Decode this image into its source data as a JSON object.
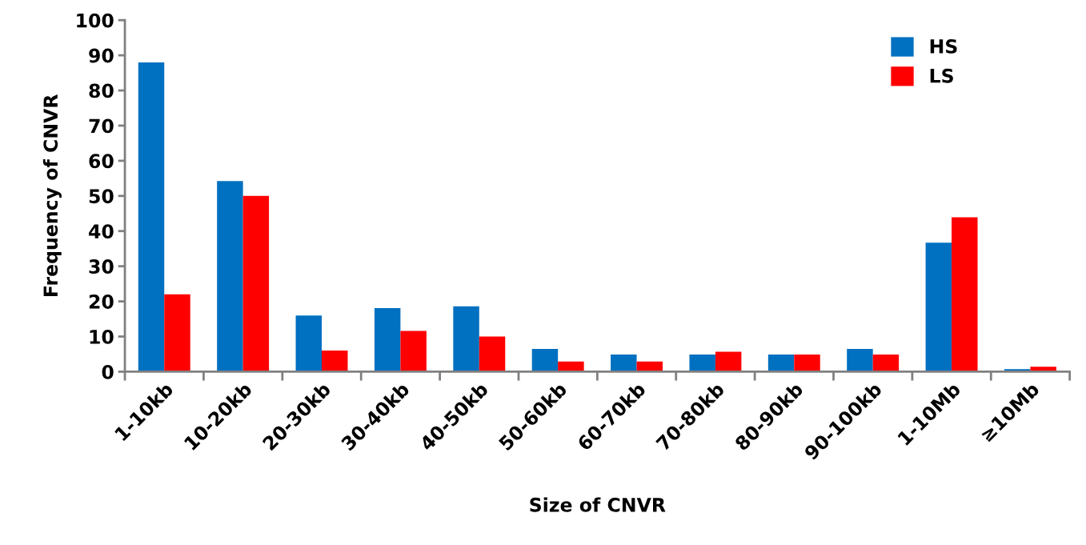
{
  "chart_data": {
    "type": "bar",
    "xlabel": "Size of CNVR",
    "ylabel": "Frequency of CNVR",
    "categories": [
      "1-10kb",
      "10-20kb",
      "20-30kb",
      "30-40kb",
      "40-50kb",
      "50-60kb",
      "60-70kb",
      "70-80kb",
      "80-90kb",
      "90-100kb",
      "1-10Mb",
      "≥10Mb"
    ],
    "series": [
      {
        "name": "HS",
        "color": "#0070c0",
        "values": [
          88,
          54.2,
          16,
          18.1,
          18.6,
          6.5,
          4.9,
          4.9,
          4.9,
          6.5,
          36.7,
          0.7
        ]
      },
      {
        "name": "LS",
        "color": "#ff0000",
        "values": [
          22,
          50,
          6,
          11.6,
          10,
          2.9,
          2.9,
          5.7,
          4.9,
          4.9,
          43.9,
          1.4
        ]
      }
    ],
    "ylim": [
      0,
      100
    ],
    "yticks": [
      0,
      10,
      20,
      30,
      40,
      50,
      60,
      70,
      80,
      90,
      100
    ],
    "grid": false,
    "legend": "top right"
  }
}
